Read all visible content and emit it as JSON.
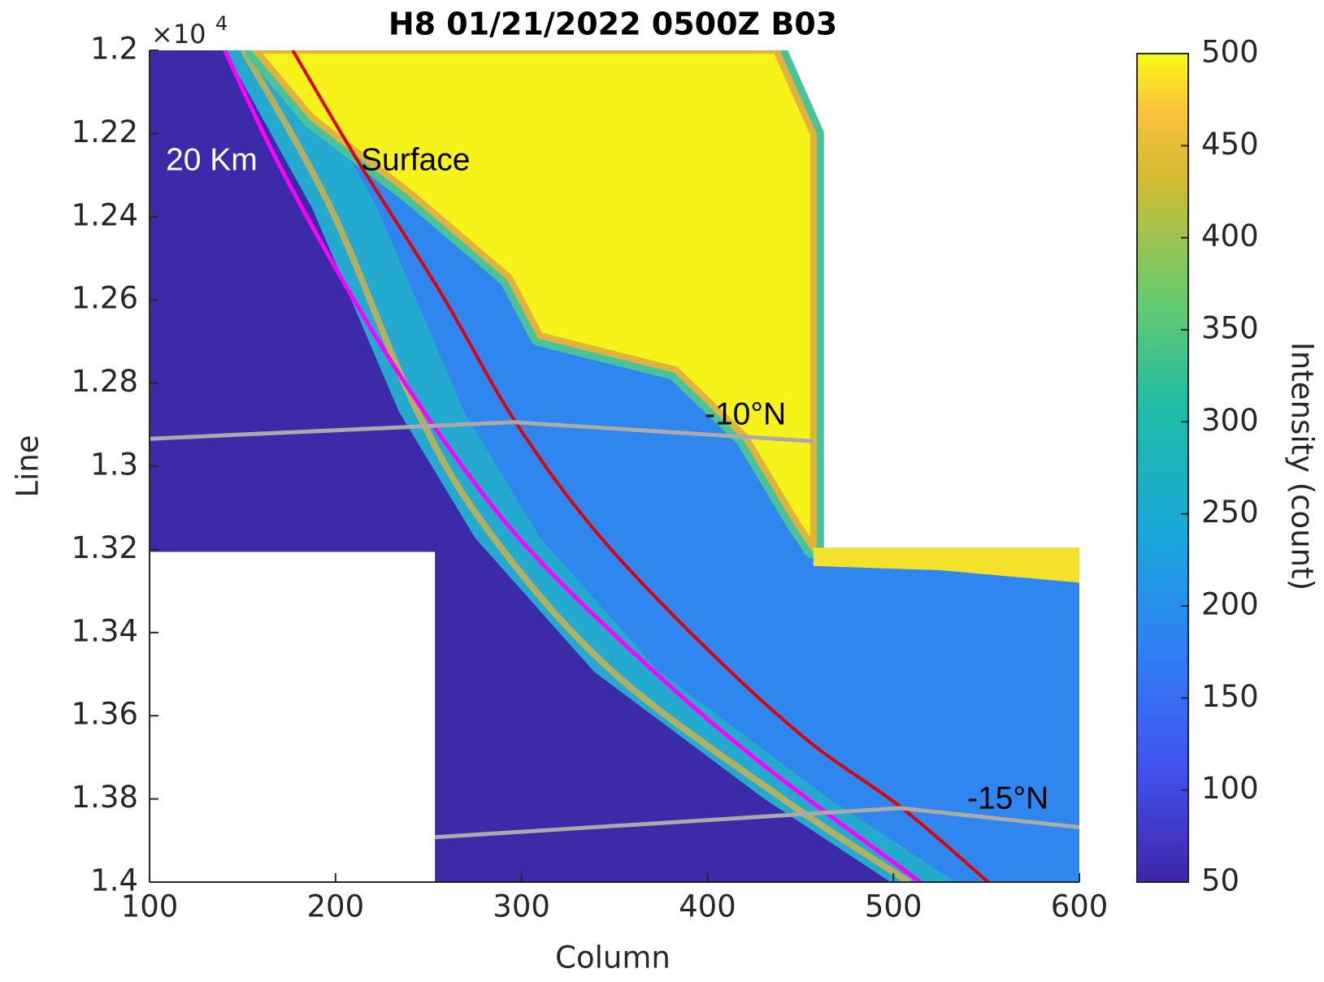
{
  "chart_data": {
    "type": "heatmap",
    "title": "H8 01/21/2022 0500Z B03",
    "x_label": "Column",
    "y_label": "Line",
    "y_exponent": {
      "base": "×10",
      "power": "4"
    },
    "xlim": [
      100,
      600
    ],
    "xticks": [
      100,
      200,
      300,
      400,
      500,
      600
    ],
    "ylim": [
      12000,
      14000
    ],
    "y_reversed": true,
    "yticks": [
      {
        "value": 12000,
        "label": "1.2"
      },
      {
        "value": 12200,
        "label": "1.22"
      },
      {
        "value": 12400,
        "label": "1.24"
      },
      {
        "value": 12600,
        "label": "1.26"
      },
      {
        "value": 12800,
        "label": "1.28"
      },
      {
        "value": 13000,
        "label": "1.3"
      },
      {
        "value": 13200,
        "label": "1.32"
      },
      {
        "value": 13400,
        "label": "1.34"
      },
      {
        "value": 13600,
        "label": "1.36"
      },
      {
        "value": 13800,
        "label": "1.38"
      },
      {
        "value": 14000,
        "label": "1.4"
      }
    ],
    "colorbar": {
      "label": "Intensity (count)",
      "clim": [
        50,
        500
      ],
      "ticks": [
        50,
        100,
        150,
        200,
        250,
        300,
        350,
        400,
        450,
        500
      ],
      "colormap": "parula"
    },
    "annotations": [
      {
        "text": "20 Km",
        "color": "#ffffff"
      },
      {
        "text": "Surface",
        "color": "#000000"
      },
      {
        "text": "-10°N",
        "color": "#000000"
      },
      {
        "text": "-15°N",
        "color": "#000000"
      }
    ]
  }
}
